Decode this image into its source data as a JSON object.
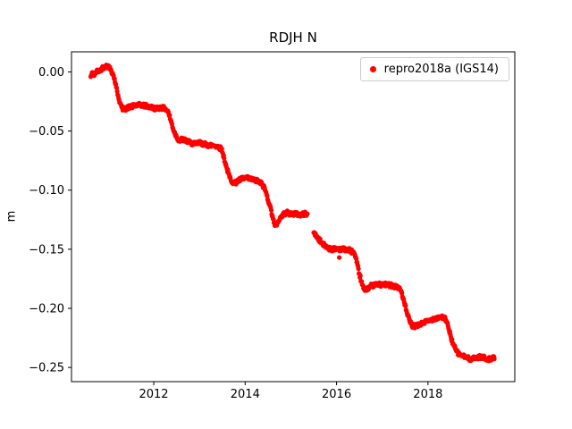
{
  "chart_data": {
    "type": "scatter",
    "title": "RDJH N",
    "xlabel": "",
    "ylabel": "m",
    "xlim": [
      2010.2,
      2019.9
    ],
    "ylim": [
      -0.262,
      0.017
    ],
    "grid": false,
    "legend_position": "upper right",
    "xticks": [
      {
        "value": 2012,
        "label": "2012"
      },
      {
        "value": 2014,
        "label": "2014"
      },
      {
        "value": 2016,
        "label": "2016"
      },
      {
        "value": 2018,
        "label": "2018"
      }
    ],
    "yticks": [
      {
        "value": 0.0,
        "label": "0.00"
      },
      {
        "value": -0.05,
        "label": "−0.05"
      },
      {
        "value": -0.1,
        "label": "−0.10"
      },
      {
        "value": -0.15,
        "label": "−0.15"
      },
      {
        "value": -0.2,
        "label": "−0.20"
      },
      {
        "value": -0.25,
        "label": "−0.25"
      }
    ],
    "series": [
      {
        "name": "repro2018a (IGS14)",
        "color": "#ff0000",
        "marker": "dot",
        "points": [
          [
            2010.62,
            -0.004
          ],
          [
            2010.66,
            -0.001
          ],
          [
            2010.7,
            -0.003
          ],
          [
            2010.74,
            0.0
          ],
          [
            2010.78,
            0.001
          ],
          [
            2010.82,
            0.001
          ],
          [
            2010.86,
            0.003
          ],
          [
            2010.9,
            0.004
          ],
          [
            2010.94,
            0.005
          ],
          [
            2010.98,
            0.005
          ],
          [
            2011.02,
            0.004
          ],
          [
            2011.06,
            0.002
          ],
          [
            2011.1,
            -0.001
          ],
          [
            2011.14,
            -0.006
          ],
          [
            2011.18,
            -0.013
          ],
          [
            2011.22,
            -0.02
          ],
          [
            2011.26,
            -0.026
          ],
          [
            2011.3,
            -0.03
          ],
          [
            2011.34,
            -0.032
          ],
          [
            2011.38,
            -0.031
          ],
          [
            2011.45,
            -0.03
          ],
          [
            2011.55,
            -0.029
          ],
          [
            2011.65,
            -0.028
          ],
          [
            2011.75,
            -0.028
          ],
          [
            2011.85,
            -0.029
          ],
          [
            2011.95,
            -0.03
          ],
          [
            2012.05,
            -0.031
          ],
          [
            2012.15,
            -0.03
          ],
          [
            2012.25,
            -0.031
          ],
          [
            2012.32,
            -0.034
          ],
          [
            2012.38,
            -0.042
          ],
          [
            2012.44,
            -0.05
          ],
          [
            2012.5,
            -0.055
          ],
          [
            2012.56,
            -0.058
          ],
          [
            2012.62,
            -0.057
          ],
          [
            2012.7,
            -0.058
          ],
          [
            2012.8,
            -0.06
          ],
          [
            2012.9,
            -0.061
          ],
          [
            2013.0,
            -0.06
          ],
          [
            2013.1,
            -0.061
          ],
          [
            2013.2,
            -0.062
          ],
          [
            2013.3,
            -0.062
          ],
          [
            2013.4,
            -0.063
          ],
          [
            2013.48,
            -0.065
          ],
          [
            2013.54,
            -0.073
          ],
          [
            2013.6,
            -0.082
          ],
          [
            2013.66,
            -0.089
          ],
          [
            2013.72,
            -0.093
          ],
          [
            2013.78,
            -0.094
          ],
          [
            2013.85,
            -0.092
          ],
          [
            2013.95,
            -0.09
          ],
          [
            2014.05,
            -0.09
          ],
          [
            2014.15,
            -0.091
          ],
          [
            2014.25,
            -0.092
          ],
          [
            2014.35,
            -0.094
          ],
          [
            2014.42,
            -0.098
          ],
          [
            2014.48,
            -0.105
          ],
          [
            2014.54,
            -0.113
          ],
          [
            2014.6,
            -0.122
          ],
          [
            2014.65,
            -0.13
          ],
          [
            2014.7,
            -0.128
          ],
          [
            2014.76,
            -0.124
          ],
          [
            2014.82,
            -0.121
          ],
          [
            2014.9,
            -0.119
          ],
          [
            2015.0,
            -0.12
          ],
          [
            2015.1,
            -0.12
          ],
          [
            2015.2,
            -0.121
          ],
          [
            2015.3,
            -0.12
          ],
          [
            2015.36,
            -0.12
          ],
          [
            2015.5,
            -0.136
          ],
          [
            2015.58,
            -0.14
          ],
          [
            2015.66,
            -0.144
          ],
          [
            2015.74,
            -0.147
          ],
          [
            2015.82,
            -0.149
          ],
          [
            2015.9,
            -0.15
          ],
          [
            2016.0,
            -0.149
          ],
          [
            2016.1,
            -0.15
          ],
          [
            2016.2,
            -0.15
          ],
          [
            2016.3,
            -0.151
          ],
          [
            2016.38,
            -0.153
          ],
          [
            2016.44,
            -0.161
          ],
          [
            2016.5,
            -0.171
          ],
          [
            2016.56,
            -0.18
          ],
          [
            2016.62,
            -0.185
          ],
          [
            2016.68,
            -0.183
          ],
          [
            2016.75,
            -0.181
          ],
          [
            2016.85,
            -0.18
          ],
          [
            2016.95,
            -0.18
          ],
          [
            2017.05,
            -0.18
          ],
          [
            2017.15,
            -0.18
          ],
          [
            2017.25,
            -0.181
          ],
          [
            2017.35,
            -0.182
          ],
          [
            2017.42,
            -0.186
          ],
          [
            2017.48,
            -0.195
          ],
          [
            2017.54,
            -0.204
          ],
          [
            2017.6,
            -0.211
          ],
          [
            2017.66,
            -0.215
          ],
          [
            2017.74,
            -0.215
          ],
          [
            2017.82,
            -0.214
          ],
          [
            2017.9,
            -0.212
          ],
          [
            2018.0,
            -0.211
          ],
          [
            2018.1,
            -0.209
          ],
          [
            2018.2,
            -0.208
          ],
          [
            2018.3,
            -0.207
          ],
          [
            2018.38,
            -0.209
          ],
          [
            2018.44,
            -0.215
          ],
          [
            2018.5,
            -0.224
          ],
          [
            2018.56,
            -0.231
          ],
          [
            2018.62,
            -0.236
          ],
          [
            2018.68,
            -0.239
          ],
          [
            2018.76,
            -0.24
          ],
          [
            2018.85,
            -0.242
          ],
          [
            2018.95,
            -0.243
          ],
          [
            2019.05,
            -0.242
          ],
          [
            2019.15,
            -0.241
          ],
          [
            2019.25,
            -0.242
          ],
          [
            2019.35,
            -0.243
          ],
          [
            2019.45,
            -0.242
          ]
        ],
        "outliers": [
          [
            2016.06,
            -0.157
          ]
        ]
      }
    ]
  }
}
